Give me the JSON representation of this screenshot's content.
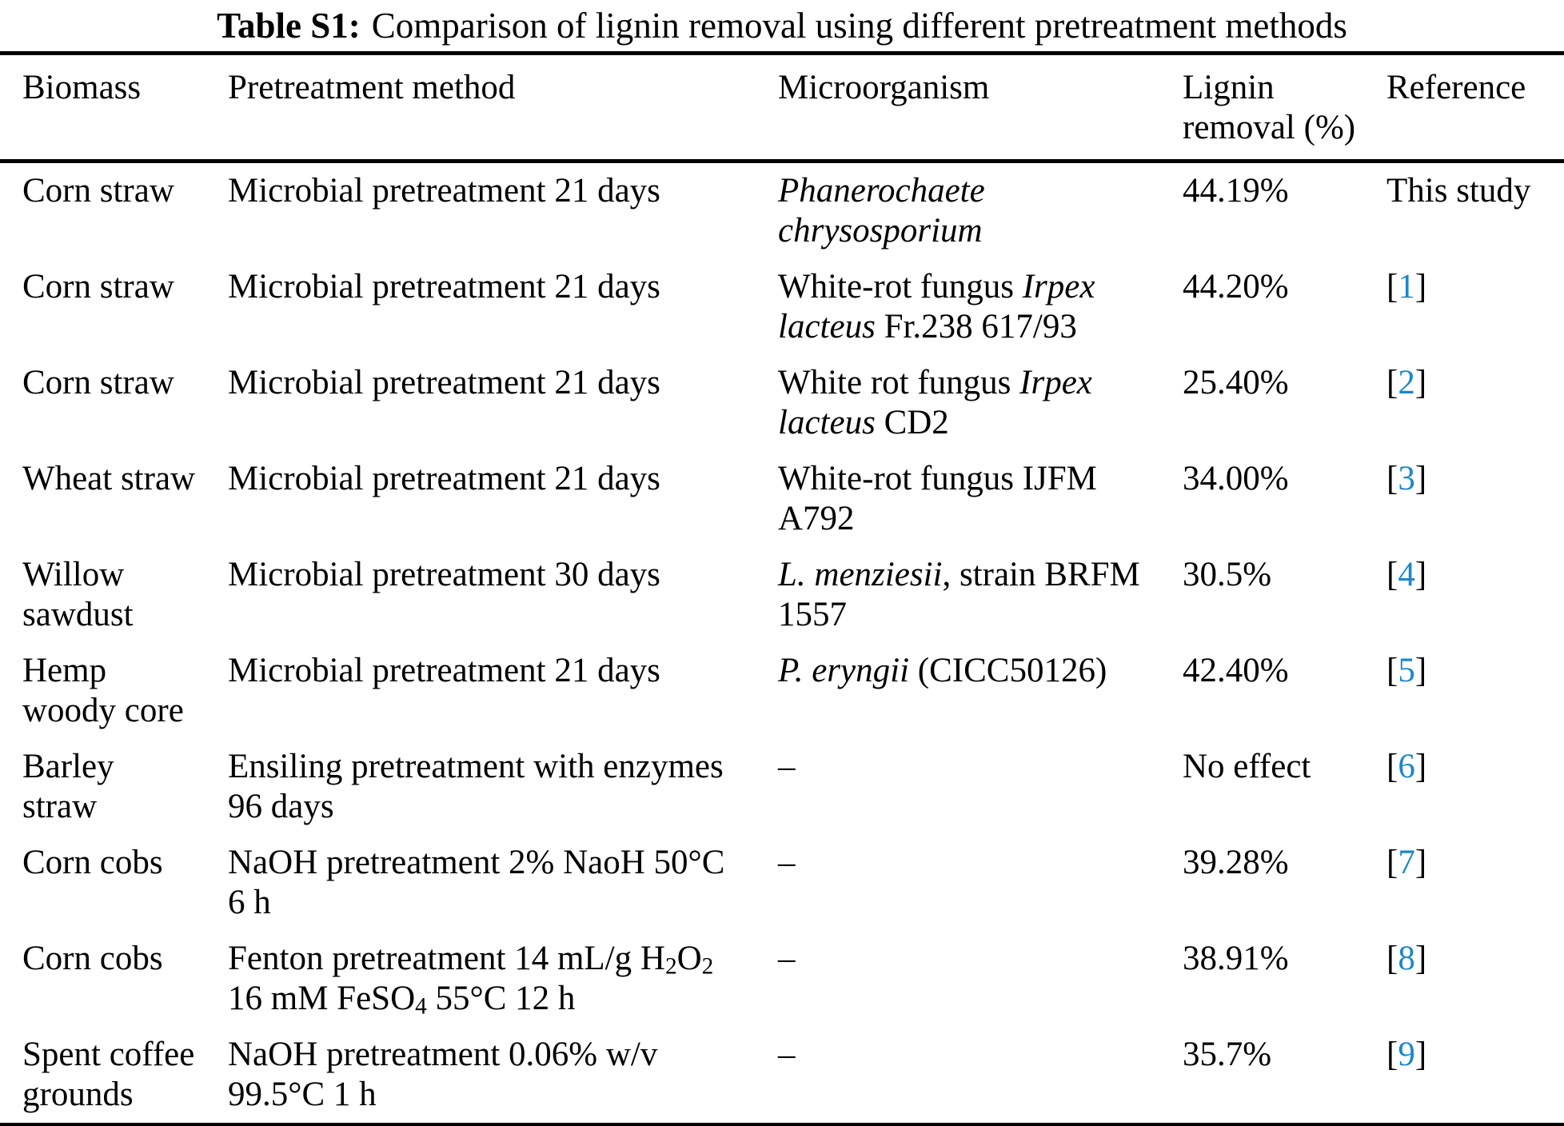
{
  "title": {
    "label": "Table S1:",
    "text": "Comparison of lignin removal using different pretreatment methods"
  },
  "colors": {
    "link_blue": "#1b87c9",
    "text_black": "#000000",
    "rule_black": "#000000",
    "background": "#ffffff"
  },
  "table": {
    "columns": [
      {
        "key": "biomass",
        "label": "Biomass"
      },
      {
        "key": "method",
        "label": "Pretreatment method"
      },
      {
        "key": "microorganism",
        "label": "Microorganism"
      },
      {
        "key": "lignin",
        "label": "Lignin\nremoval (%)"
      },
      {
        "key": "reference",
        "label": "Reference"
      }
    ],
    "rows": [
      {
        "biomass": [
          {
            "t": "Corn straw"
          }
        ],
        "method": [
          {
            "t": "Microbial pretreatment 21 days"
          }
        ],
        "microorganism": [
          {
            "t": "Phanerochaete\nchrysosporium",
            "i": true
          }
        ],
        "lignin": [
          {
            "t": "44.19%"
          }
        ],
        "reference": [
          {
            "t": "This study"
          }
        ]
      },
      {
        "biomass": [
          {
            "t": "Corn straw"
          }
        ],
        "method": [
          {
            "t": "Microbial pretreatment 21 days"
          }
        ],
        "microorganism": [
          {
            "t": "White-rot fungus "
          },
          {
            "t": "Irpex\nlacteus",
            "i": true
          },
          {
            "t": " Fr.238 617/93"
          }
        ],
        "lignin": [
          {
            "t": "44.20%"
          }
        ],
        "reference": [
          {
            "t": "["
          },
          {
            "t": "1",
            "ref": true
          },
          {
            "t": "]"
          }
        ]
      },
      {
        "biomass": [
          {
            "t": "Corn straw"
          }
        ],
        "method": [
          {
            "t": "Microbial pretreatment 21 days"
          }
        ],
        "microorganism": [
          {
            "t": "White rot fungus "
          },
          {
            "t": "Irpex\nlacteus",
            "i": true
          },
          {
            "t": " CD2"
          }
        ],
        "lignin": [
          {
            "t": "25.40%"
          }
        ],
        "reference": [
          {
            "t": "["
          },
          {
            "t": "2",
            "ref": true
          },
          {
            "t": "]"
          }
        ]
      },
      {
        "biomass": [
          {
            "t": "Wheat straw"
          }
        ],
        "method": [
          {
            "t": "Microbial pretreatment 21 days"
          }
        ],
        "microorganism": [
          {
            "t": "White-rot fungus IJFM\nA792"
          }
        ],
        "lignin": [
          {
            "t": "34.00%"
          }
        ],
        "reference": [
          {
            "t": "["
          },
          {
            "t": "3",
            "ref": true
          },
          {
            "t": "]"
          }
        ]
      },
      {
        "biomass": [
          {
            "t": "Willow\nsawdust"
          }
        ],
        "method": [
          {
            "t": "Microbial pretreatment 30 days"
          }
        ],
        "microorganism": [
          {
            "t": "L. menziesii",
            "i": true
          },
          {
            "t": ", strain BRFM\n1557"
          }
        ],
        "lignin": [
          {
            "t": "30.5%"
          }
        ],
        "reference": [
          {
            "t": "["
          },
          {
            "t": "4",
            "ref": true
          },
          {
            "t": "]"
          }
        ]
      },
      {
        "biomass": [
          {
            "t": "Hemp\nwoody core"
          }
        ],
        "method": [
          {
            "t": "Microbial pretreatment 21 days"
          }
        ],
        "microorganism": [
          {
            "t": "P. eryngii",
            "i": true
          },
          {
            "t": " (CICC50126)"
          }
        ],
        "lignin": [
          {
            "t": "42.40%"
          }
        ],
        "reference": [
          {
            "t": "["
          },
          {
            "t": "5",
            "ref": true
          },
          {
            "t": "]"
          }
        ]
      },
      {
        "biomass": [
          {
            "t": "Barley\nstraw"
          }
        ],
        "method": [
          {
            "t": "Ensiling pretreatment with enzymes\n96 days"
          }
        ],
        "microorganism": [
          {
            "t": "–"
          }
        ],
        "lignin": [
          {
            "t": "No effect"
          }
        ],
        "reference": [
          {
            "t": "["
          },
          {
            "t": "6",
            "ref": true
          },
          {
            "t": "]"
          }
        ]
      },
      {
        "biomass": [
          {
            "t": "Corn cobs"
          }
        ],
        "method": [
          {
            "t": "NaOH pretreatment 2% NaoH 50°C\n6 h"
          }
        ],
        "microorganism": [
          {
            "t": "–"
          }
        ],
        "lignin": [
          {
            "t": "39.28%"
          }
        ],
        "reference": [
          {
            "t": "["
          },
          {
            "t": "7",
            "ref": true
          },
          {
            "t": "]"
          }
        ]
      },
      {
        "biomass": [
          {
            "t": "Corn cobs"
          }
        ],
        "method": [
          {
            "t": "Fenton pretreatment 14 mL/g H"
          },
          {
            "t": "2",
            "sub": true
          },
          {
            "t": "O"
          },
          {
            "t": "2",
            "sub": true
          },
          {
            "t": "\n16 mM FeSO"
          },
          {
            "t": "4",
            "sub": true
          },
          {
            "t": " 55°C 12 h"
          }
        ],
        "microorganism": [
          {
            "t": "–"
          }
        ],
        "lignin": [
          {
            "t": "38.91%"
          }
        ],
        "reference": [
          {
            "t": "["
          },
          {
            "t": "8",
            "ref": true
          },
          {
            "t": "]"
          }
        ]
      },
      {
        "biomass": [
          {
            "t": "Spent coffee\ngrounds"
          }
        ],
        "method": [
          {
            "t": "NaOH pretreatment 0.06% w/v\n99.5°C 1 h"
          }
        ],
        "microorganism": [
          {
            "t": "–"
          }
        ],
        "lignin": [
          {
            "t": "35.7%"
          }
        ],
        "reference": [
          {
            "t": "["
          },
          {
            "t": "9",
            "ref": true
          },
          {
            "t": "]"
          }
        ]
      }
    ]
  }
}
